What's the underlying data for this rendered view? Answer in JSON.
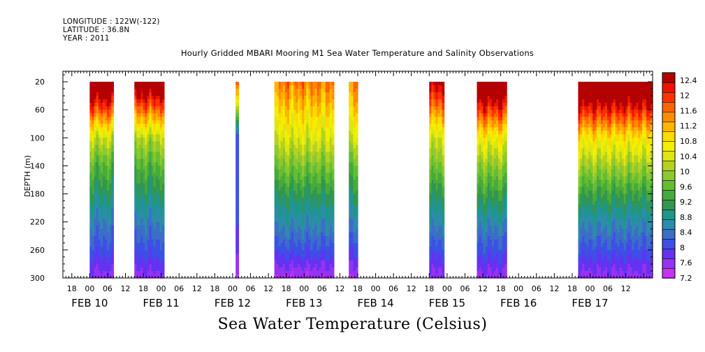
{
  "header": {
    "longitude": "LONGITUDE : 122W(-122)",
    "latitude": "LATITUDE : 36.8N",
    "year": "YEAR : 2011"
  },
  "chart_data": {
    "type": "heatmap",
    "title": "Hourly Gridded MBARI Mooring M1 Sea Water Temperature and Salinity Observations",
    "xlabel": "",
    "ylabel": "DEPTH (m)",
    "colorbar_label": "Sea Water Temperature (Celsius)",
    "x_time_range_hours": [
      "2011-02-09T15:00",
      "2011-02-17T21:00"
    ],
    "x_hour_ticks": [
      "18",
      "00",
      "06",
      "12",
      "18",
      "00",
      "06",
      "12",
      "18",
      "00",
      "06",
      "12",
      "18",
      "00",
      "06",
      "12",
      "18",
      "00",
      "06",
      "12",
      "18",
      "00",
      "06",
      "12",
      "18",
      "00",
      "06",
      "12",
      "18",
      "00",
      "06",
      "12"
    ],
    "x_day_labels": [
      "FEB 10",
      "FEB 11",
      "FEB 12",
      "FEB 13",
      "FEB 14",
      "FEB 15",
      "FEB 16",
      "FEB 17"
    ],
    "y_ticks": [
      20,
      60,
      100,
      140,
      180,
      220,
      260,
      300
    ],
    "ylim": [
      300,
      5
    ],
    "colorbar_ticks": [
      7.2,
      7.6,
      8,
      8.4,
      8.8,
      9.2,
      9.6,
      10,
      10.4,
      10.8,
      11.2,
      11.6,
      12,
      12.4
    ],
    "colorbar_labels": [
      "7.2",
      "7.6",
      "8",
      "8.4",
      "8.8",
      "9.2",
      "9.6",
      "10",
      "10.4",
      "10.8",
      "11.2",
      "11.6",
      "12",
      "12.4"
    ],
    "colors": [
      "#c832f0",
      "#9632f0",
      "#6432f0",
      "#3c50e6",
      "#3c6ec8",
      "#2d8caa",
      "#1e968c",
      "#329650",
      "#46aa3c",
      "#64be32",
      "#8cc832",
      "#b4d21e",
      "#dce614",
      "#f0f000",
      "#fadc00",
      "#ffb400",
      "#ff8c00",
      "#ff6400",
      "#ff3200",
      "#f01400",
      "#b40000"
    ],
    "segments": [
      {
        "start": "2011-02-10T00:00",
        "end": "2011-02-10T08:00",
        "surface": 12.0,
        "t100": 9.6,
        "t140": 9.0,
        "t180": 8.6,
        "t220": 8.2,
        "t260": 7.9,
        "t300": 7.5
      },
      {
        "start": "2011-02-10T15:00",
        "end": "2011-02-11T01:00",
        "surface": 11.8,
        "t100": 9.5,
        "t140": 9.0,
        "t180": 8.6,
        "t220": 8.2,
        "t260": 7.9,
        "t300": 7.5
      },
      {
        "start": "2011-02-12T01:00",
        "end": "2011-02-12T02:00",
        "surface": 11.0,
        "t100": 8.0,
        "t140": 8.0,
        "t180": 8.0,
        "t220": 7.9,
        "t260": 7.7,
        "t300": 7.4
      },
      {
        "start": "2011-02-12T14:00",
        "end": "2011-02-13T10:00",
        "surface": 10.6,
        "t100": 9.7,
        "t140": 9.2,
        "t180": 8.7,
        "t220": 8.3,
        "t260": 7.9,
        "t300": 7.4
      },
      {
        "start": "2011-02-13T15:00",
        "end": "2011-02-13T18:00",
        "surface": 10.5,
        "t100": 9.6,
        "t140": 9.0,
        "t180": 8.6,
        "t220": 8.2,
        "t260": 7.8,
        "t300": 7.4
      },
      {
        "start": "2011-02-14T18:00",
        "end": "2011-02-14T23:00",
        "surface": 11.4,
        "t100": 9.7,
        "t140": 9.2,
        "t180": 8.7,
        "t220": 8.3,
        "t260": 7.9,
        "t300": 7.5
      },
      {
        "start": "2011-02-15T10:00",
        "end": "2011-02-15T20:00",
        "surface": 12.0,
        "t100": 9.9,
        "t140": 9.3,
        "t180": 8.8,
        "t220": 8.3,
        "t260": 7.9,
        "t300": 7.5
      },
      {
        "start": "2011-02-16T20:00",
        "end": "2011-02-17T21:00",
        "surface": 12.1,
        "t100": 10.0,
        "t140": 9.4,
        "t180": 8.8,
        "t220": 8.3,
        "t260": 7.9,
        "t300": 7.5
      }
    ]
  }
}
